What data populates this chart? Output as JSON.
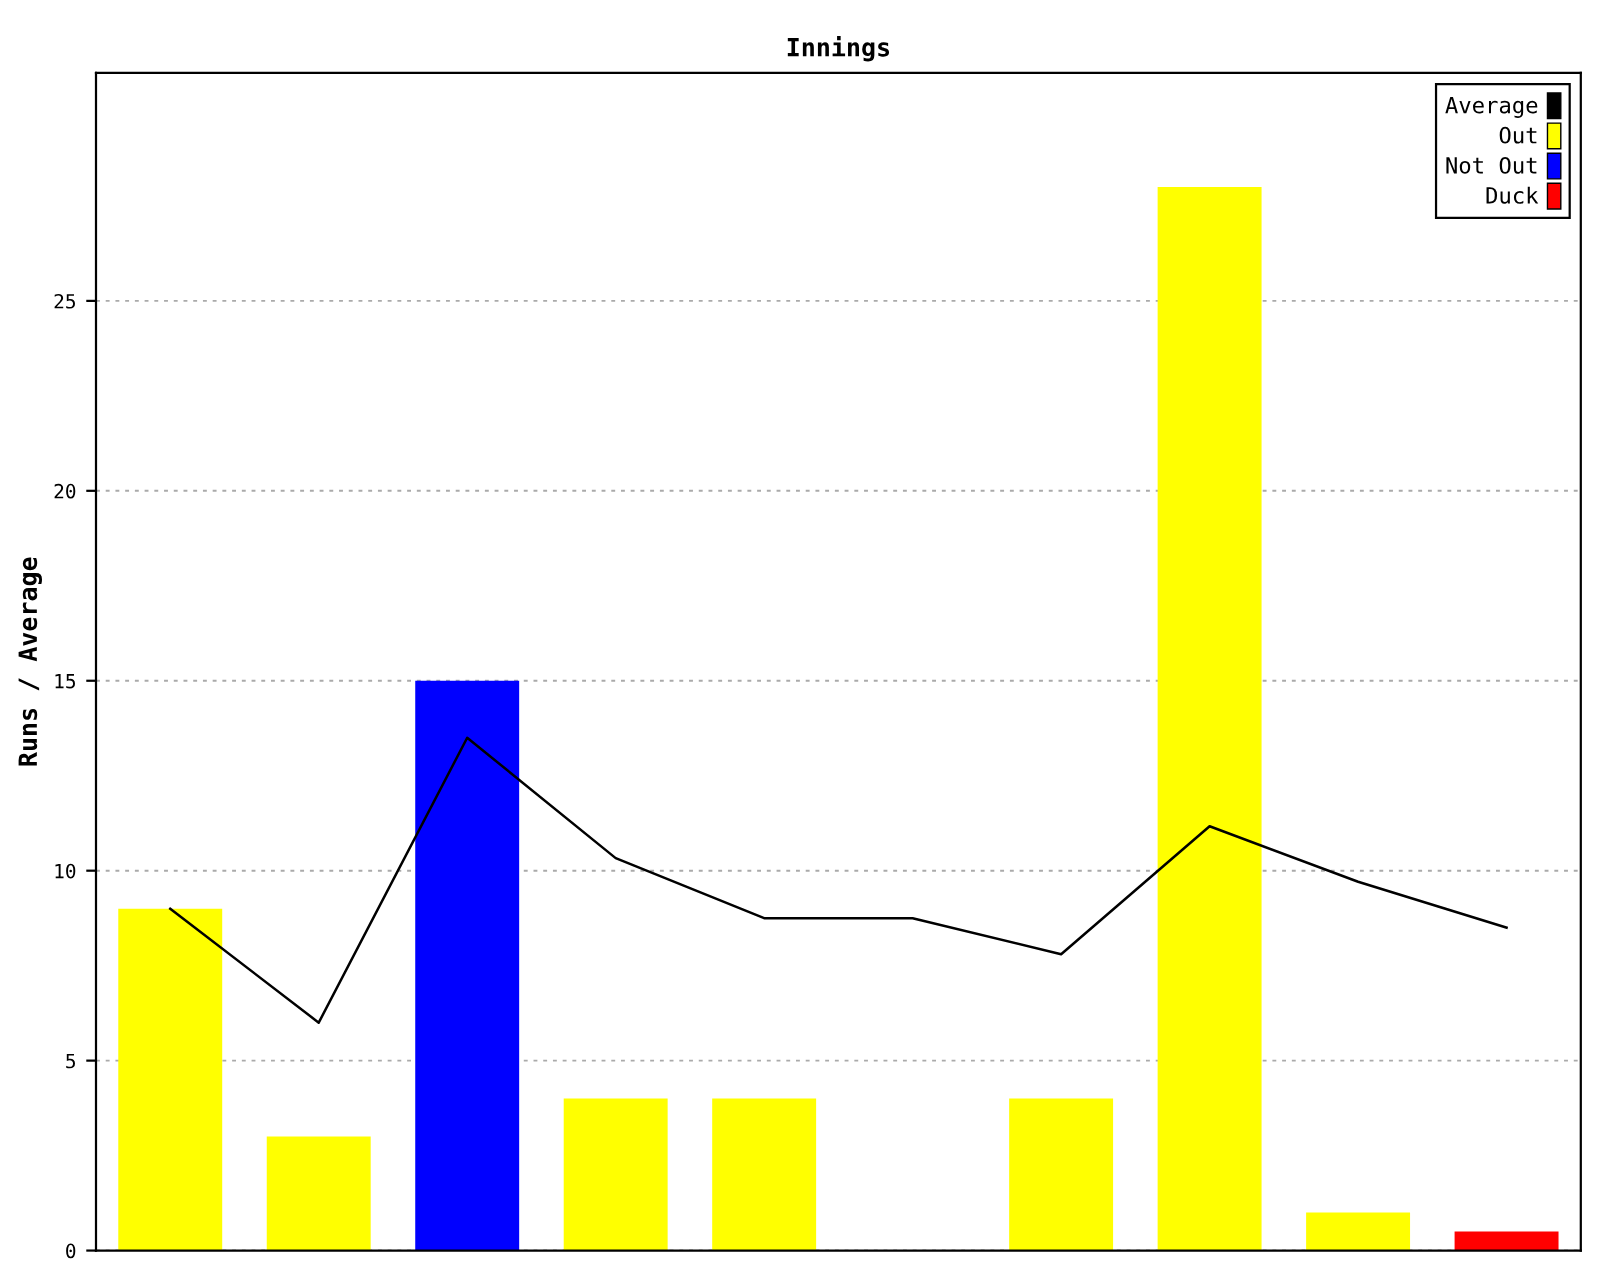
{
  "chart_data": {
    "type": "bar",
    "title": "Innings",
    "ylabel": "Runs / Average",
    "categories": [
      null,
      null,
      null,
      null,
      null,
      null,
      null,
      null,
      null,
      null
    ],
    "series": [
      {
        "name": "Average",
        "type": "line",
        "color": "#000000",
        "values": [
          9,
          6,
          13.5,
          10.33,
          8.75,
          8.75,
          7.8,
          11.17,
          9.71,
          8.5
        ]
      },
      {
        "name": "Out",
        "color": "#ffff00",
        "values": [
          9,
          3,
          null,
          4,
          4,
          null,
          4,
          28,
          1,
          null
        ]
      },
      {
        "name": "Not Out",
        "color": "#0000ff",
        "values": [
          null,
          null,
          15,
          null,
          null,
          null,
          null,
          null,
          null,
          null
        ]
      },
      {
        "name": "Duck",
        "color": "#ff0000",
        "values": [
          null,
          null,
          null,
          null,
          null,
          null,
          null,
          null,
          null,
          0.5
        ]
      }
    ],
    "ylim": [
      0,
      31
    ],
    "yticks": [
      0,
      5,
      10,
      15,
      20,
      25
    ],
    "grid": "y",
    "legend": "top right",
    "marker": "none"
  }
}
